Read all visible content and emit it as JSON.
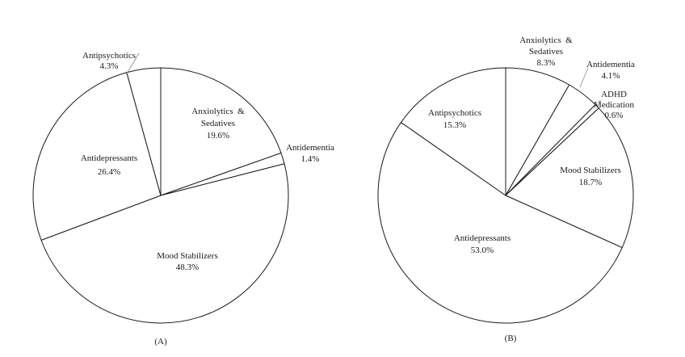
{
  "chart_data": [
    {
      "type": "pie",
      "panel_label": "(A)",
      "slices": [
        {
          "label_lines": [
            "Anxiolytics",
            "&",
            "Sedatives"
          ],
          "percent_text": "19.6%",
          "value": 19.6
        },
        {
          "label_lines": [
            "Antidementia"
          ],
          "percent_text": "1.4%",
          "value": 1.4
        },
        {
          "label_lines": [
            "Mood Stabilizers"
          ],
          "percent_text": "48.3%",
          "value": 48.3
        },
        {
          "label_lines": [
            "Antidepressants"
          ],
          "percent_text": "26.4%",
          "value": 26.4
        },
        {
          "label_lines": [
            "Antipsychotics"
          ],
          "percent_text": "4.3%",
          "value": 4.3
        }
      ]
    },
    {
      "type": "pie",
      "panel_label": "(B)",
      "slices": [
        {
          "label_lines": [
            "Anxiolytics",
            "&",
            "Sedatives"
          ],
          "percent_text": "8.3%",
          "value": 8.3
        },
        {
          "label_lines": [
            "Antidementia"
          ],
          "percent_text": "4.1%",
          "value": 4.1
        },
        {
          "label_lines": [
            "ADHD",
            "Medication"
          ],
          "percent_text": "0.6%",
          "value": 0.6
        },
        {
          "label_lines": [
            "Mood Stabilizers"
          ],
          "percent_text": "18.7%",
          "value": 18.7
        },
        {
          "label_lines": [
            "Antidepressants"
          ],
          "percent_text": "53.0%",
          "value": 53.0
        },
        {
          "label_lines": [
            "Antipsychotics"
          ],
          "percent_text": "15.3%",
          "value": 15.3
        }
      ]
    }
  ]
}
